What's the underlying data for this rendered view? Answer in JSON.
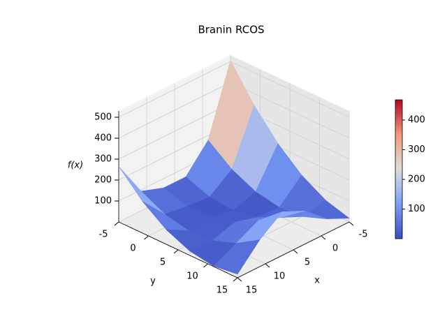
{
  "chart_data": {
    "type": "surface",
    "title": "Branin RCOS",
    "xlabel": "x",
    "ylabel": "y",
    "zlabel": "f(x)",
    "x": [
      -5,
      -1,
      3,
      7,
      11,
      15
    ],
    "y": [
      -5,
      -1,
      3,
      7,
      11,
      15
    ],
    "z": [
      [
        505.0,
        177.0,
        55.1,
        55.5,
        93.3,
        265.0
      ],
      [
        343.5,
        91.2,
        12.0,
        22.0,
        36.3,
        151.4
      ],
      [
        214.0,
        37.5,
        0.9,
        20.5,
        11.3,
        69.8
      ],
      [
        116.5,
        15.7,
        21.8,
        51.0,
        18.3,
        20.3
      ],
      [
        51.0,
        25.9,
        74.7,
        113.5,
        57.3,
        2.7
      ],
      [
        17.5,
        68.2,
        159.6,
        208.0,
        128.3,
        17.2
      ]
    ],
    "xlim": [
      -5,
      15
    ],
    "ylim": [
      -5,
      15
    ],
    "zlim": [
      0,
      530
    ],
    "xticks": [
      -5,
      0,
      5,
      10,
      15
    ],
    "yticks": [
      -5,
      0,
      5,
      10,
      15
    ],
    "zticks": [
      100,
      200,
      300,
      400,
      500
    ],
    "grid": true,
    "colormap": "coolwarm",
    "colorbar": {
      "clim": [
        0.4,
        468
      ],
      "ticks": [
        100,
        200,
        300,
        400
      ]
    }
  }
}
